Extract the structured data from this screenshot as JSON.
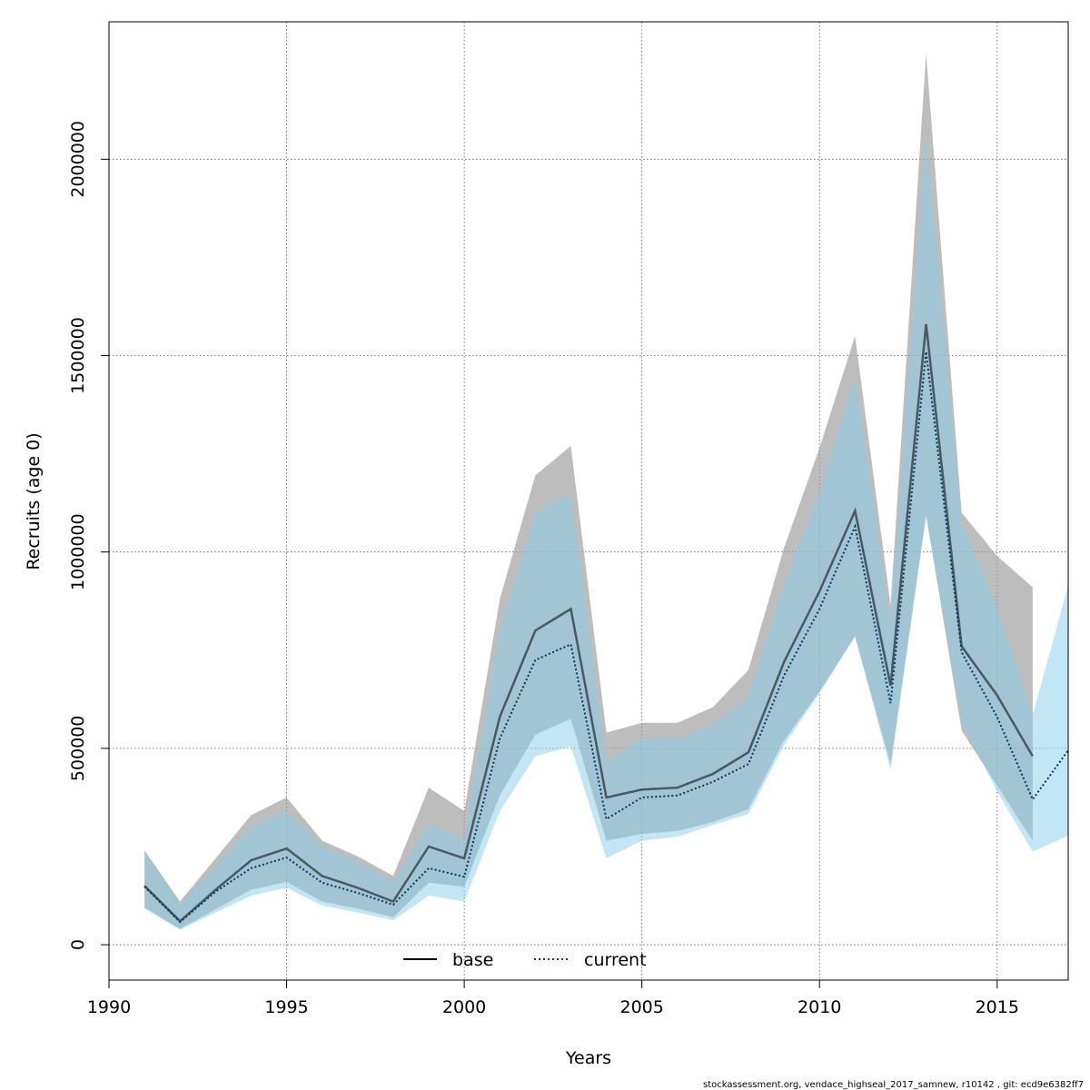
{
  "chart_data": {
    "type": "area",
    "title": "",
    "xlabel": "Years",
    "ylabel": "Recruits (age 0)",
    "xlim": [
      1990,
      2017
    ],
    "ylim": [
      -90000,
      2350000
    ],
    "x_ticks": [
      1990,
      1995,
      2000,
      2005,
      2010,
      2015
    ],
    "y_ticks": [
      0,
      500000,
      1000000,
      1500000,
      2000000
    ],
    "x_tick_labels": [
      "1990",
      "1995",
      "2000",
      "2005",
      "2010",
      "2015"
    ],
    "y_tick_labels": [
      "0",
      "500000",
      "1000000",
      "1500000",
      "2000000"
    ],
    "grid": true,
    "legend_position": "bottom-center",
    "footer": "stockassessment.org, vendace_highseal_2017_samnew, r10142 , git: ecd9e6382ff7",
    "series": [
      {
        "name": "base",
        "line_style": "solid",
        "line_color": "#000000",
        "band_color": "#999999",
        "x": [
          1991,
          1992,
          1993,
          1994,
          1995,
          1996,
          1997,
          1998,
          1999,
          2000,
          2001,
          2002,
          2003,
          2004,
          2005,
          2006,
          2007,
          2008,
          2009,
          2010,
          2011,
          2012,
          2013,
          2014,
          2015,
          2016
        ],
        "values": [
          150000,
          60000,
          140000,
          215000,
          245000,
          175000,
          145000,
          110000,
          250000,
          220000,
          580000,
          800000,
          855000,
          375000,
          395000,
          400000,
          435000,
          490000,
          720000,
          900000,
          1105000,
          660000,
          1580000,
          760000,
          635000,
          480000
        ],
        "lower": [
          95000,
          40000,
          90000,
          140000,
          160000,
          110000,
          92000,
          70000,
          158000,
          148000,
          380000,
          535000,
          575000,
          265000,
          282000,
          290000,
          312000,
          345000,
          520000,
          645000,
          785000,
          460000,
          1095000,
          545000,
          405000,
          265000
        ],
        "upper": [
          240000,
          110000,
          220000,
          330000,
          375000,
          265000,
          225000,
          175000,
          400000,
          340000,
          880000,
          1195000,
          1270000,
          540000,
          565000,
          565000,
          605000,
          700000,
          1010000,
          1265000,
          1550000,
          865000,
          2270000,
          1100000,
          990000,
          910000
        ]
      },
      {
        "name": "current",
        "line_style": "dotted",
        "line_color": "#003a66",
        "band_color": "#87ceeb",
        "x": [
          1991,
          1992,
          1993,
          1994,
          1995,
          1996,
          1997,
          1998,
          1999,
          2000,
          2001,
          2002,
          2003,
          2004,
          2005,
          2006,
          2007,
          2008,
          2009,
          2010,
          2011,
          2012,
          2013,
          2014,
          2015,
          2016,
          2017
        ],
        "values": [
          148000,
          58000,
          135000,
          195000,
          222000,
          158000,
          132000,
          102000,
          195000,
          173000,
          525000,
          725000,
          765000,
          320000,
          375000,
          380000,
          415000,
          460000,
          685000,
          855000,
          1065000,
          615000,
          1510000,
          745000,
          580000,
          370000,
          495000
        ],
        "lower": [
          92000,
          38000,
          82000,
          125000,
          145000,
          100000,
          82000,
          62000,
          125000,
          110000,
          340000,
          480000,
          505000,
          220000,
          265000,
          275000,
          305000,
          333000,
          508000,
          640000,
          785000,
          445000,
          1090000,
          570000,
          390000,
          237000,
          278000
        ],
        "upper": [
          240000,
          105000,
          200000,
          300000,
          340000,
          250000,
          210000,
          160000,
          305000,
          270000,
          800000,
          1100000,
          1150000,
          465000,
          525000,
          525000,
          560000,
          630000,
          920000,
          1150000,
          1450000,
          825000,
          2070000,
          1075000,
          860000,
          585000,
          915000
        ]
      }
    ]
  }
}
